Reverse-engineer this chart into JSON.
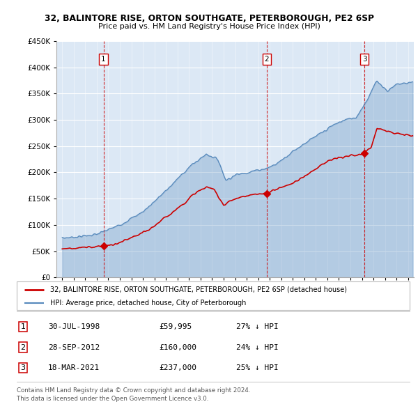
{
  "title1": "32, BALINTORE RISE, ORTON SOUTHGATE, PETERBOROUGH, PE2 6SP",
  "title2": "Price paid vs. HM Land Registry's House Price Index (HPI)",
  "transactions": [
    {
      "num": 1,
      "date": "30-JUL-1998",
      "price": 59995,
      "year": 1998.58,
      "label": "27% ↓ HPI"
    },
    {
      "num": 2,
      "date": "28-SEP-2012",
      "price": 160000,
      "year": 2012.75,
      "label": "24% ↓ HPI"
    },
    {
      "num": 3,
      "date": "18-MAR-2021",
      "price": 237000,
      "year": 2021.21,
      "label": "25% ↓ HPI"
    }
  ],
  "legend_line1": "32, BALINTORE RISE, ORTON SOUTHGATE, PETERBOROUGH, PE2 6SP (detached house)",
  "legend_line2": "HPI: Average price, detached house, City of Peterborough",
  "footer1": "Contains HM Land Registry data © Crown copyright and database right 2024.",
  "footer2": "This data is licensed under the Open Government Licence v3.0.",
  "hpi_color": "#5588bb",
  "price_color": "#cc0000",
  "dashed_line_color": "#cc0000",
  "ylim": [
    0,
    450000
  ],
  "yticks": [
    0,
    50000,
    100000,
    150000,
    200000,
    250000,
    300000,
    350000,
    400000,
    450000
  ],
  "xlim_start": 1994.5,
  "xlim_end": 2025.5,
  "background_color": "#ffffff",
  "plot_bg_color": "#dce8f5"
}
